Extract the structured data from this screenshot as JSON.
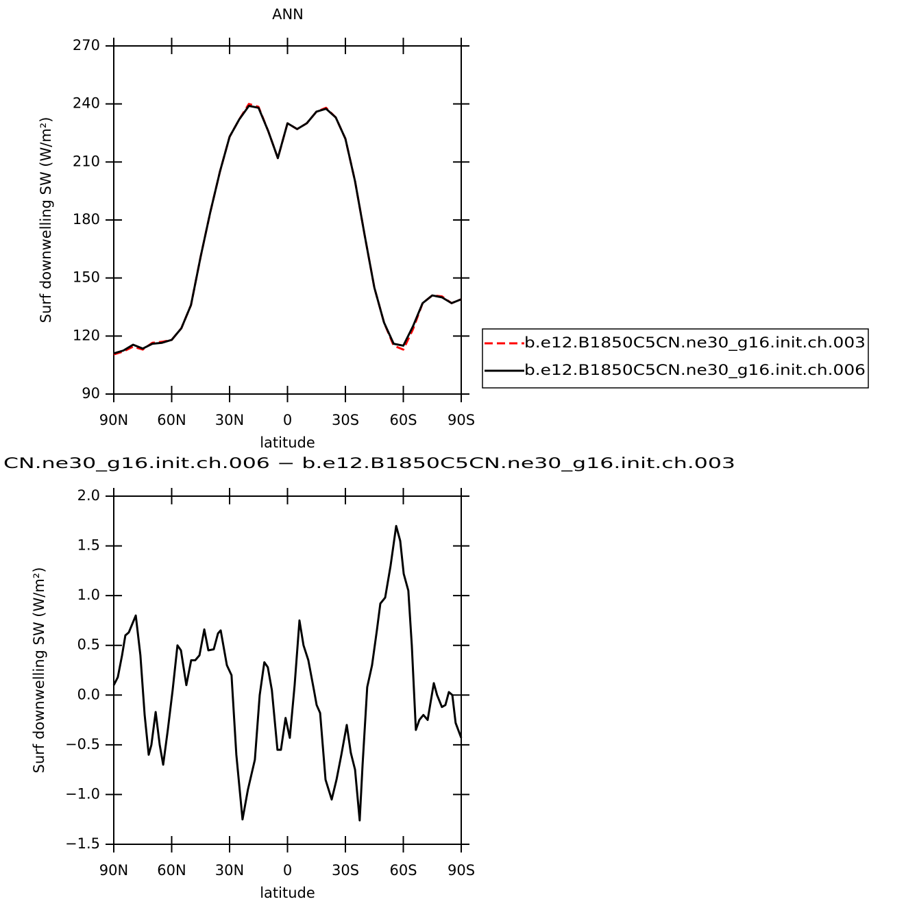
{
  "chart_data": [
    {
      "type": "line",
      "title": "ANN",
      "x_label": "latitude",
      "y_label": "Surf downwelling SW (W/m²)",
      "x": [
        90,
        85,
        80,
        75,
        70,
        65,
        60,
        55,
        50,
        45,
        40,
        35,
        30,
        25,
        20,
        15,
        10,
        5,
        0,
        -5,
        -10,
        -15,
        -20,
        -25,
        -30,
        -35,
        -40,
        -45,
        -50,
        -55,
        -60,
        -65,
        -70,
        -75,
        -80,
        -85,
        -90
      ],
      "series": [
        {
          "name": "b.e12.B1850C5CN.ne30_g16.init.ch.003",
          "color": "#ff0000",
          "dashed": true,
          "values": [
            110.5,
            112,
            114.5,
            113,
            116.5,
            117,
            118,
            124,
            136,
            161,
            184,
            205,
            223,
            232,
            240,
            238.5,
            226,
            212,
            230,
            227,
            230,
            236,
            238,
            233,
            222,
            200,
            172,
            145,
            127,
            115,
            113,
            123.5,
            137,
            141,
            140.5,
            137,
            139
          ]
        },
        {
          "name": "b.e12.B1850C5CN.ne30_g16.init.ch.006",
          "color": "#000000",
          "dashed": false,
          "values": [
            111,
            112.5,
            115.5,
            113.5,
            116,
            116.5,
            118,
            124,
            136,
            161,
            184,
            205,
            223,
            232,
            239,
            238,
            226,
            212,
            230,
            227,
            230,
            236,
            237.5,
            233,
            222,
            200,
            172,
            145,
            127,
            116,
            115,
            125,
            137,
            141,
            140,
            137,
            139
          ]
        }
      ],
      "xlim": [
        90,
        -90
      ],
      "xticks": [
        {
          "value": 90,
          "label": "90N"
        },
        {
          "value": 60,
          "label": "60N"
        },
        {
          "value": 30,
          "label": "30N"
        },
        0,
        {
          "value": -30,
          "label": "30S"
        },
        {
          "value": -60,
          "label": "60S"
        },
        {
          "value": -90,
          "label": "90S"
        }
      ],
      "ylim": [
        90,
        270
      ],
      "yticks": [
        90,
        120,
        150,
        180,
        210,
        240,
        270
      ],
      "legend": "right"
    },
    {
      "type": "line",
      "title": "CN.ne30_g16.init.ch.006 − b.e12.B1850C5CN.ne30_g16.init.ch.003",
      "x_label": "latitude",
      "y_label": "Surf downwelling SW (W/m²)",
      "x": [
        90,
        87.9,
        85.7,
        84.0,
        82.2,
        78.6,
        76.2,
        74.0,
        71.9,
        70.5,
        68.3,
        66.2,
        64.4,
        62.0,
        59.5,
        57.0,
        55.2,
        52.4,
        49.9,
        47.8,
        45.6,
        43.1,
        41.0,
        38.2,
        36.0,
        34.6,
        31.4,
        29.0,
        26.5,
        23.3,
        20.5,
        16.9,
        14.4,
        12.0,
        10.2,
        8.1,
        5.2,
        3.4,
        1.0,
        -1.2,
        -3.7,
        -6.2,
        -8.3,
        -10.8,
        -13.7,
        -15.1,
        -16.9,
        -19.7,
        -22.9,
        -25.4,
        -27.9,
        -30.7,
        -32.8,
        -35.0,
        -37.4,
        -38.9,
        -41.3,
        -43.8,
        -46.3,
        -48.1,
        -50.6,
        -53.4,
        -56.3,
        -58.4,
        -60.2,
        -62.6,
        -64.4,
        -66.5,
        -68.3,
        -70.4,
        -72.6,
        -75.8,
        -77.5,
        -80.0,
        -81.8,
        -83.6,
        -85.4,
        -87.1,
        -90
      ],
      "series": [
        {
          "name": null,
          "color": "#000000",
          "dashed": false,
          "values": [
            0.1,
            0.18,
            0.4,
            0.6,
            0.63,
            0.8,
            0.4,
            -0.2,
            -0.6,
            -0.5,
            -0.17,
            -0.5,
            -0.7,
            -0.35,
            0.05,
            0.5,
            0.45,
            0.1,
            0.35,
            0.35,
            0.4,
            0.66,
            0.45,
            0.46,
            0.62,
            0.65,
            0.3,
            0.2,
            -0.6,
            -1.25,
            -0.95,
            -0.65,
            0.0,
            0.33,
            0.28,
            0.05,
            -0.55,
            -0.55,
            -0.23,
            -0.43,
            0.1,
            0.75,
            0.5,
            0.35,
            0.05,
            -0.1,
            -0.18,
            -0.85,
            -1.05,
            -0.85,
            -0.6,
            -0.3,
            -0.58,
            -0.75,
            -1.26,
            -0.7,
            0.08,
            0.3,
            0.65,
            0.92,
            0.98,
            1.3,
            1.7,
            1.55,
            1.22,
            1.05,
            0.5,
            -0.35,
            -0.25,
            -0.2,
            -0.25,
            0.12,
            0.0,
            -0.12,
            -0.1,
            0.03,
            0.0,
            -0.28,
            -0.43
          ]
        }
      ],
      "xlim": [
        90,
        -90
      ],
      "xticks": [
        {
          "value": 90,
          "label": "90N"
        },
        {
          "value": 60,
          "label": "60N"
        },
        {
          "value": 30,
          "label": "30N"
        },
        0,
        {
          "value": -30,
          "label": "30S"
        },
        {
          "value": -60,
          "label": "60S"
        },
        {
          "value": -90,
          "label": "90S"
        }
      ],
      "ylim": [
        -1.5,
        2
      ],
      "yticks": [
        {
          "value": -1.5,
          "label": "−1.5"
        },
        {
          "value": -1,
          "label": "−1.0"
        },
        {
          "value": -0.5,
          "label": "−0.5"
        },
        {
          "value": 0,
          "label": "0.0"
        },
        0.5,
        {
          "value": 1,
          "label": "1.0"
        },
        1.5,
        {
          "value": 2,
          "label": "2.0"
        }
      ]
    }
  ]
}
